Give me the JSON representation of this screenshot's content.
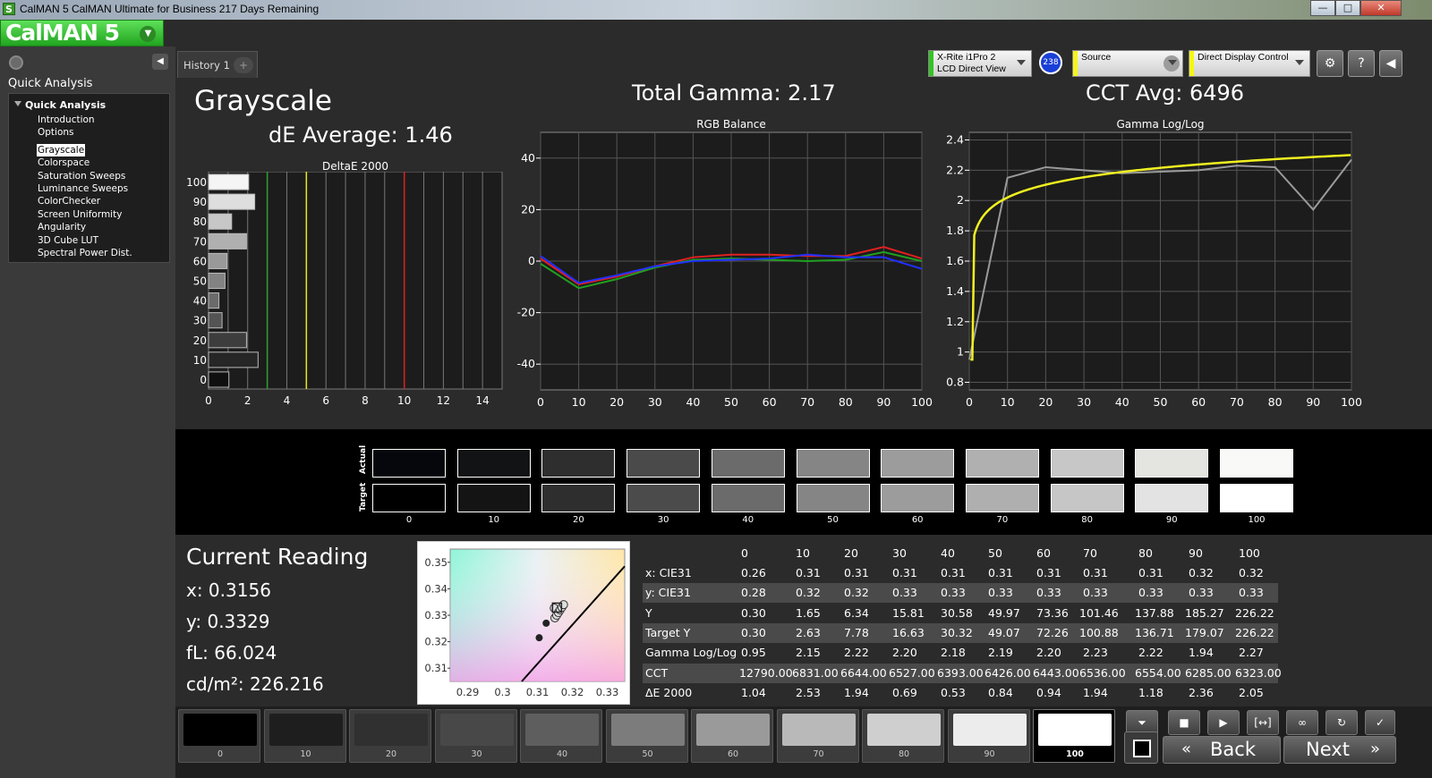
{
  "window": {
    "title": "CalMAN 5 CalMAN Ultimate for Business 217 Days Remaining",
    "app_icon": "S"
  },
  "logo": {
    "text": "CalMAN 5"
  },
  "sidebar": {
    "section_title": "Quick Analysis",
    "group_title": "Quick Analysis",
    "items": [
      "Introduction",
      "Options",
      "Grayscale",
      "Colorspace",
      "Saturation Sweeps",
      "Luminance Sweeps",
      "ColorChecker",
      "Screen Uniformity",
      "Angularity",
      "3D Cube LUT",
      "Spectral Power Dist."
    ],
    "selected": "Grayscale"
  },
  "tabs": {
    "history": "History 1",
    "add": "+"
  },
  "devices": {
    "meter_line1": "X-Rite i1Pro 2",
    "meter_line2": "LCD Direct View",
    "meter_color": "#34c324",
    "badge": "238",
    "source": "Source",
    "source_color": "#f6f618",
    "display": "Direct Display Control",
    "display_color": "#f6f618"
  },
  "summary": {
    "page_title": "Grayscale",
    "de_average": "dE Average: 1.46",
    "total_gamma": "Total Gamma: 2.17",
    "cct_avg": "CCT Avg: 6496"
  },
  "chart_data": [
    {
      "type": "bar",
      "title": "DeltaE 2000",
      "orientation": "horizontal",
      "categories": [
        "0",
        "10",
        "20",
        "30",
        "40",
        "50",
        "60",
        "70",
        "80",
        "90",
        "100"
      ],
      "values": [
        1.04,
        2.53,
        1.94,
        0.69,
        0.53,
        0.84,
        0.94,
        1.94,
        1.18,
        2.36,
        2.05
      ],
      "xlim": [
        0,
        15
      ],
      "xticks": [
        "0",
        "2",
        "4",
        "6",
        "8",
        "10",
        "12",
        "14"
      ],
      "threshold_lines": [
        {
          "x": 3,
          "color": "#2ea02e"
        },
        {
          "x": 5,
          "color": "#e6e61a"
        },
        {
          "x": 10,
          "color": "#e02020"
        }
      ]
    },
    {
      "type": "line",
      "title": "RGB Balance",
      "x": [
        0,
        10,
        20,
        30,
        40,
        50,
        60,
        70,
        80,
        90,
        100
      ],
      "xticks": [
        "0",
        "10",
        "20",
        "30",
        "40",
        "50",
        "60",
        "70",
        "80",
        "90",
        "100"
      ],
      "yticks": [
        "40",
        "20",
        "0",
        "-20",
        "-40"
      ],
      "ylim": [
        -50,
        50
      ],
      "series": [
        {
          "color": "#e02020",
          "values": [
            1,
            -9,
            -6,
            -2,
            1.5,
            2.5,
            2.5,
            2,
            2,
            5.5,
            1
          ]
        },
        {
          "color": "#20a020",
          "values": [
            -1,
            -10.5,
            -7,
            -2.5,
            0.5,
            1,
            0.5,
            0,
            0.5,
            3.5,
            0
          ]
        },
        {
          "color": "#2030ff",
          "values": [
            2,
            -8.5,
            -5.5,
            -2,
            0,
            0.5,
            1,
            2.5,
            1.5,
            1.5,
            -3
          ]
        }
      ]
    },
    {
      "type": "line",
      "title": "Gamma Log/Log",
      "x": [
        0,
        10,
        20,
        30,
        40,
        50,
        60,
        70,
        80,
        90,
        100
      ],
      "xticks": [
        "0",
        "10",
        "20",
        "30",
        "40",
        "50",
        "60",
        "70",
        "80",
        "90",
        "100"
      ],
      "yticks": [
        "2.4",
        "2.2",
        "2",
        "1.8",
        "1.6",
        "1.4",
        "1.2",
        "1",
        "0.8"
      ],
      "ylim": [
        0.75,
        2.45
      ],
      "series": [
        {
          "color": "#9a9a9a",
          "values": [
            0.95,
            2.15,
            2.22,
            2.2,
            2.18,
            2.19,
            2.2,
            2.23,
            2.22,
            1.94,
            2.27
          ]
        },
        {
          "color": "#f0f020",
          "target_gamma": 2.3
        }
      ]
    },
    {
      "type": "scatter",
      "title": "",
      "xlim": [
        0.285,
        0.335
      ],
      "ylim": [
        0.305,
        0.355
      ],
      "xticks": [
        "0.29",
        "0.3",
        "0.31",
        "0.32",
        "0.33"
      ],
      "yticks": [
        "0.35",
        "0.34",
        "0.33",
        "0.32",
        "0.31"
      ],
      "points": [
        {
          "x": 0.3148,
          "y": 0.3327
        },
        {
          "x": 0.315,
          "y": 0.329
        },
        {
          "x": 0.3155,
          "y": 0.33
        },
        {
          "x": 0.316,
          "y": 0.331
        },
        {
          "x": 0.3165,
          "y": 0.332
        },
        {
          "x": 0.317,
          "y": 0.333
        },
        {
          "x": 0.3175,
          "y": 0.334
        },
        {
          "x": 0.3105,
          "y": 0.3215
        },
        {
          "x": 0.3125,
          "y": 0.327
        },
        {
          "x": 0.3156,
          "y": 0.3329
        }
      ]
    }
  ],
  "swatches": {
    "actual_label": "Actual",
    "target_label": "Target",
    "labels": [
      "0",
      "10",
      "20",
      "30",
      "40",
      "50",
      "60",
      "70",
      "80",
      "90",
      "100"
    ],
    "actual_colors": [
      "#05070c",
      "#111315",
      "#2e2e2e",
      "#4a4a4a",
      "#6b6b6b",
      "#858585",
      "#9c9c9c",
      "#b0b0b0",
      "#c7c7c7",
      "#e4e4e0",
      "#f9f9f7"
    ],
    "target_colors": [
      "#000000",
      "#141414",
      "#2e2e2e",
      "#4b4b4b",
      "#6b6b6b",
      "#858585",
      "#9c9c9c",
      "#afafaf",
      "#c6c6c6",
      "#e3e3e3",
      "#ffffff"
    ]
  },
  "reading": {
    "title": "Current Reading",
    "x": "x: 0.3156",
    "y": "y: 0.3329",
    "fl": "fL: 66.024",
    "cd": "cd/m²: 226.216"
  },
  "table": {
    "columns": [
      "0",
      "10",
      "20",
      "30",
      "40",
      "50",
      "60",
      "70",
      "80",
      "90",
      "100"
    ],
    "rows": [
      {
        "label": "x: CIE31",
        "values": [
          "0.26",
          "0.31",
          "0.31",
          "0.31",
          "0.31",
          "0.31",
          "0.31",
          "0.31",
          "0.31",
          "0.32",
          "0.32"
        ]
      },
      {
        "label": "y: CIE31",
        "values": [
          "0.28",
          "0.32",
          "0.32",
          "0.33",
          "0.33",
          "0.33",
          "0.33",
          "0.33",
          "0.33",
          "0.33",
          "0.33"
        ]
      },
      {
        "label": "Y",
        "values": [
          "0.30",
          "1.65",
          "6.34",
          "15.81",
          "30.58",
          "49.97",
          "73.36",
          "101.46",
          "137.88",
          "185.27",
          "226.22"
        ]
      },
      {
        "label": "Target Y",
        "values": [
          "0.30",
          "2.63",
          "7.78",
          "16.63",
          "30.32",
          "49.07",
          "72.26",
          "100.88",
          "136.71",
          "179.07",
          "226.22"
        ]
      },
      {
        "label": "Gamma Log/Log",
        "values": [
          "0.95",
          "2.15",
          "2.22",
          "2.20",
          "2.18",
          "2.19",
          "2.20",
          "2.23",
          "2.22",
          "1.94",
          "2.27"
        ]
      },
      {
        "label": "CCT",
        "values": [
          "12790.00",
          "6831.00",
          "6644.00",
          "6527.00",
          "6393.00",
          "6426.00",
          "6443.00",
          "6536.00",
          "6554.00",
          "6285.00",
          "6323.00"
        ]
      },
      {
        "label": "ΔE 2000",
        "values": [
          "1.04",
          "2.53",
          "1.94",
          "0.69",
          "0.53",
          "0.84",
          "0.94",
          "1.94",
          "1.18",
          "2.36",
          "2.05"
        ]
      }
    ]
  },
  "patches": {
    "labels": [
      "0",
      "10",
      "20",
      "30",
      "40",
      "50",
      "60",
      "70",
      "80",
      "90",
      "100"
    ],
    "colors": [
      "#000000",
      "#1e1e1e",
      "#303030",
      "#484848",
      "#5e5e5e",
      "#7c7c7c",
      "#9a9a9a",
      "#b9b9b9",
      "#cfcfcf",
      "#ececec",
      "#ffffff"
    ],
    "selected": "100"
  },
  "controls": {
    "back": "Back",
    "next": "Next"
  }
}
